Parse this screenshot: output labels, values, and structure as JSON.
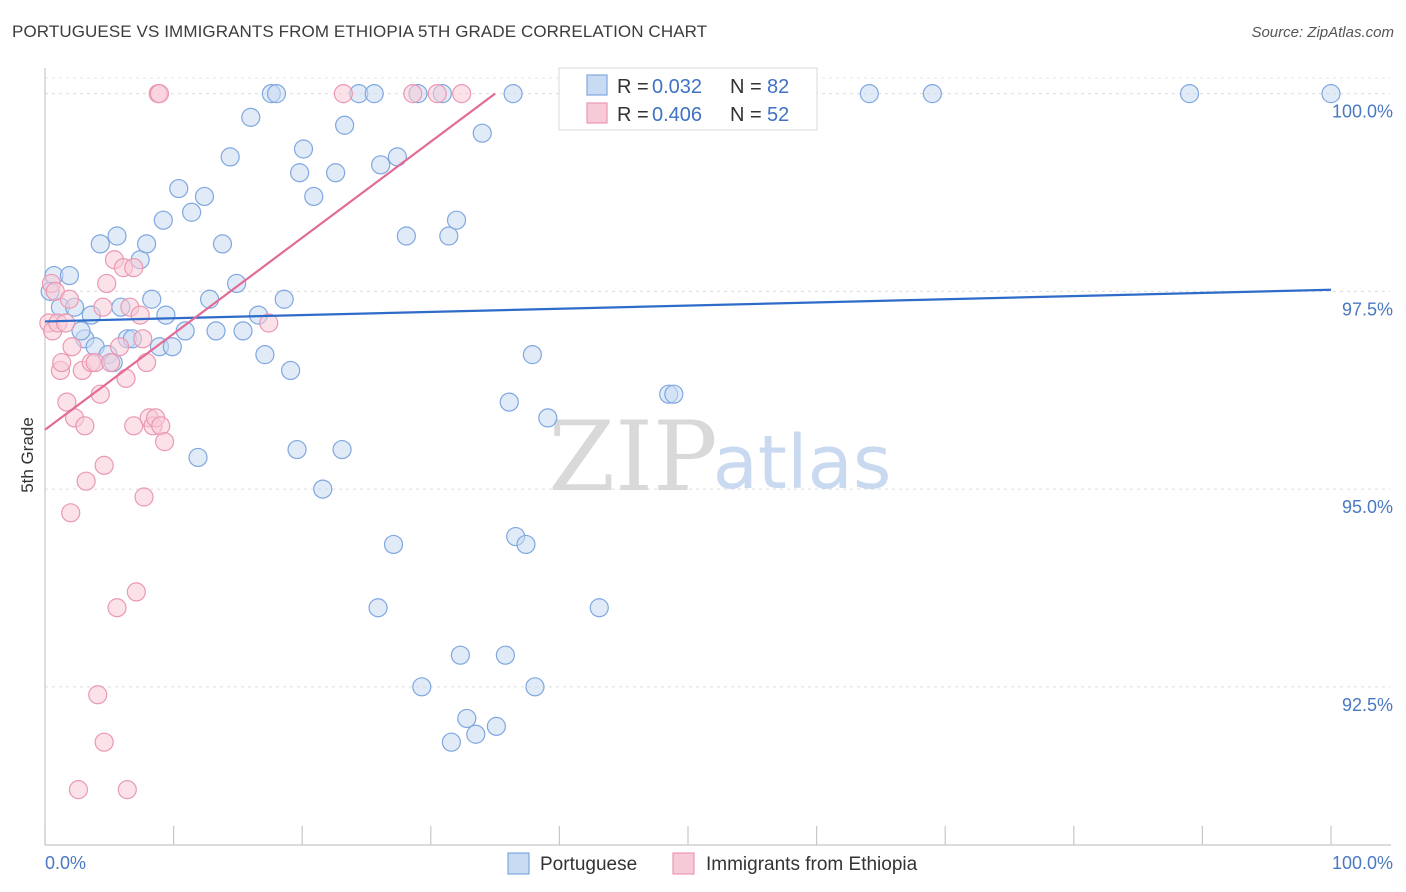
{
  "title": "PORTUGUESE VS IMMIGRANTS FROM ETHIOPIA 5TH GRADE CORRELATION CHART",
  "source": "Source: ZipAtlas.com",
  "watermark": {
    "zip": "ZIP",
    "atlas": "atlas"
  },
  "chart_data": {
    "type": "scatter",
    "ylabel": "5th Grade",
    "xlim": [
      0,
      100
    ],
    "ylim": [
      90.5,
      100.4
    ],
    "y_ticks": [
      {
        "value": 100.0,
        "label": "100.0%"
      },
      {
        "value": 97.5,
        "label": "97.5%"
      },
      {
        "value": 95.0,
        "label": "95.0%"
      },
      {
        "value": 92.5,
        "label": "92.5%"
      }
    ],
    "x_tick_labels": {
      "left": "0.0%",
      "right": "100.0%"
    },
    "grid": true,
    "legend_position": "top-center",
    "series": [
      {
        "name": "Portuguese",
        "color": "#7fa7e0",
        "fill": "#c9dbf3",
        "line_color": "#2f6cc9",
        "R_label": "R =",
        "R": "0.032",
        "N_label": "N =",
        "N": "82",
        "trend": {
          "x": [
            0,
            100
          ],
          "y": [
            97.12,
            97.52
          ]
        },
        "points": [
          [
            0.7,
            97.7
          ],
          [
            1.2,
            97.3
          ],
          [
            1.9,
            97.7
          ],
          [
            2.3,
            97.3
          ],
          [
            3.1,
            96.9
          ],
          [
            3.6,
            97.2
          ],
          [
            3.9,
            96.8
          ],
          [
            4.3,
            98.1
          ],
          [
            4.9,
            96.7
          ],
          [
            5.3,
            96.6
          ],
          [
            5.9,
            97.3
          ],
          [
            6.4,
            96.9
          ],
          [
            6.8,
            96.9
          ],
          [
            7.4,
            97.9
          ],
          [
            7.9,
            98.1
          ],
          [
            8.3,
            97.4
          ],
          [
            8.9,
            96.8
          ],
          [
            9.4,
            97.2
          ],
          [
            9.9,
            96.8
          ],
          [
            10.4,
            98.8
          ],
          [
            10.9,
            97.0
          ],
          [
            11.4,
            98.5
          ],
          [
            11.9,
            95.4
          ],
          [
            12.4,
            98.7
          ],
          [
            12.8,
            97.4
          ],
          [
            13.3,
            97.0
          ],
          [
            13.8,
            98.1
          ],
          [
            14.4,
            99.2
          ],
          [
            14.9,
            97.6
          ],
          [
            15.4,
            97.0
          ],
          [
            16.0,
            99.7
          ],
          [
            16.6,
            97.2
          ],
          [
            17.1,
            96.7
          ],
          [
            17.6,
            100.0
          ],
          [
            18.0,
            100.0
          ],
          [
            18.6,
            97.4
          ],
          [
            19.1,
            96.5
          ],
          [
            19.6,
            95.5
          ],
          [
            19.8,
            99.0
          ],
          [
            20.1,
            99.3
          ],
          [
            20.9,
            98.7
          ],
          [
            21.6,
            95.0
          ],
          [
            22.6,
            99.0
          ],
          [
            23.1,
            95.5
          ],
          [
            23.3,
            99.6
          ],
          [
            24.4,
            100.0
          ],
          [
            25.6,
            100.0
          ],
          [
            25.9,
            93.5
          ],
          [
            26.1,
            99.1
          ],
          [
            27.1,
            94.3
          ],
          [
            27.4,
            99.2
          ],
          [
            28.1,
            98.2
          ],
          [
            29.0,
            100.0
          ],
          [
            29.3,
            92.5
          ],
          [
            30.9,
            100.0
          ],
          [
            31.4,
            98.2
          ],
          [
            31.6,
            91.8
          ],
          [
            32.0,
            98.4
          ],
          [
            32.3,
            92.9
          ],
          [
            32.8,
            92.1
          ],
          [
            33.5,
            91.9
          ],
          [
            34.0,
            99.5
          ],
          [
            35.1,
            92.0
          ],
          [
            35.8,
            92.9
          ],
          [
            36.1,
            96.1
          ],
          [
            36.4,
            100.0
          ],
          [
            36.6,
            94.4
          ],
          [
            37.4,
            94.3
          ],
          [
            37.9,
            96.7
          ],
          [
            38.1,
            92.5
          ],
          [
            39.1,
            95.9
          ],
          [
            43.1,
            93.5
          ],
          [
            48.5,
            96.2
          ],
          [
            48.9,
            96.2
          ],
          [
            64.1,
            100.0
          ],
          [
            69.0,
            100.0
          ],
          [
            89.0,
            100.0
          ],
          [
            100.0,
            100.0
          ],
          [
            0.4,
            97.5
          ],
          [
            2.8,
            97.0
          ],
          [
            5.6,
            98.2
          ],
          [
            9.2,
            98.4
          ]
        ]
      },
      {
        "name": "Immigrants from Ethiopia",
        "color": "#eb98b2",
        "fill": "#f7cad7",
        "line_color": "#e36b95",
        "R_label": "R =",
        "R": "0.406",
        "N_label": "N =",
        "N": "52",
        "trend": {
          "x": [
            0,
            35
          ],
          "y": [
            95.75,
            100.0
          ]
        },
        "points": [
          [
            0.3,
            97.1
          ],
          [
            0.5,
            97.6
          ],
          [
            0.6,
            97.0
          ],
          [
            0.8,
            97.5
          ],
          [
            1.0,
            97.1
          ],
          [
            1.2,
            96.5
          ],
          [
            1.3,
            96.6
          ],
          [
            1.6,
            97.1
          ],
          [
            1.7,
            96.1
          ],
          [
            1.9,
            97.4
          ],
          [
            2.1,
            96.8
          ],
          [
            2.0,
            94.7
          ],
          [
            2.3,
            95.9
          ],
          [
            2.6,
            91.2
          ],
          [
            2.9,
            96.5
          ],
          [
            3.1,
            95.8
          ],
          [
            3.2,
            95.1
          ],
          [
            3.6,
            96.6
          ],
          [
            3.9,
            96.6
          ],
          [
            4.1,
            92.4
          ],
          [
            4.3,
            96.2
          ],
          [
            4.5,
            97.3
          ],
          [
            4.6,
            91.8
          ],
          [
            4.8,
            97.6
          ],
          [
            4.6,
            95.3
          ],
          [
            5.1,
            96.6
          ],
          [
            5.4,
            97.9
          ],
          [
            5.6,
            93.5
          ],
          [
            5.8,
            96.8
          ],
          [
            6.1,
            97.8
          ],
          [
            6.3,
            96.4
          ],
          [
            6.4,
            91.2
          ],
          [
            6.9,
            97.8
          ],
          [
            6.9,
            95.8
          ],
          [
            6.6,
            97.3
          ],
          [
            7.1,
            93.7
          ],
          [
            7.4,
            97.2
          ],
          [
            7.6,
            96.9
          ],
          [
            7.7,
            94.9
          ],
          [
            7.9,
            96.6
          ],
          [
            8.1,
            95.9
          ],
          [
            8.4,
            95.8
          ],
          [
            8.6,
            95.9
          ],
          [
            9.0,
            95.8
          ],
          [
            9.3,
            95.6
          ],
          [
            8.8,
            100.0
          ],
          [
            8.9,
            100.0
          ],
          [
            17.4,
            97.1
          ],
          [
            23.2,
            100.0
          ],
          [
            28.6,
            100.0
          ],
          [
            30.5,
            100.0
          ],
          [
            32.4,
            100.0
          ]
        ]
      }
    ]
  }
}
